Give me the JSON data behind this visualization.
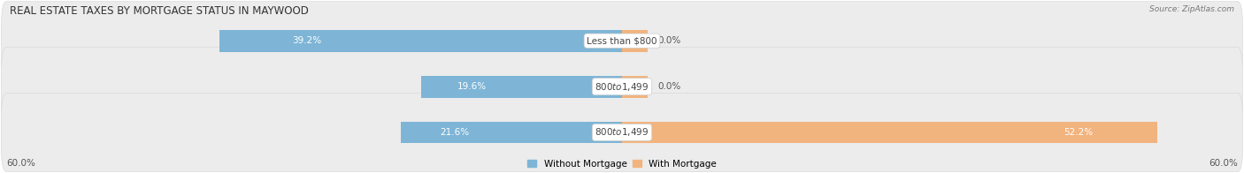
{
  "title": "REAL ESTATE TAXES BY MORTGAGE STATUS IN MAYWOOD",
  "source": "Source: ZipAtlas.com",
  "categories": [
    "Less than $800",
    "$800 to $1,499",
    "$800 to $1,499"
  ],
  "without_mortgage": [
    39.2,
    19.6,
    21.6
  ],
  "with_mortgage": [
    0.0,
    0.0,
    52.2
  ],
  "color_without": "#7eb5d6",
  "color_with": "#f2b47e",
  "x_left_label": "60.0%",
  "x_right_label": "60.0%",
  "xlim_abs": 60,
  "legend_without": "Without Mortgage",
  "legend_with": "With Mortgage",
  "bg_bar": "#ececec",
  "bg_fig": "#ffffff",
  "title_fontsize": 8.5,
  "bar_height": 0.48,
  "label_fontsize": 7.5,
  "axis_label_fontsize": 7.5
}
